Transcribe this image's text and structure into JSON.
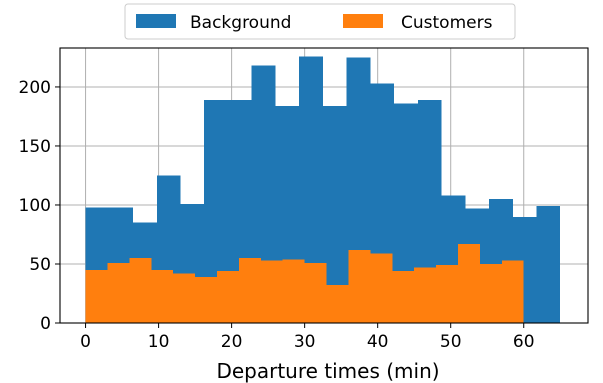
{
  "chart_data": {
    "type": "bar",
    "subtype": "overlapping-histogram",
    "xlabel": "Departure times (min)",
    "ylabel": "",
    "xlim": [
      -3.5,
      68.8
    ],
    "ylim": [
      0,
      233
    ],
    "xticks": [
      0,
      10,
      20,
      30,
      40,
      50,
      60
    ],
    "yticks": [
      0,
      50,
      100,
      150,
      200
    ],
    "grid": true,
    "legend_position": "top-center",
    "series": [
      {
        "name": "Background",
        "color": "#1f77b4",
        "bin_edges": [
          0,
          3.25,
          6.5,
          9.75,
          13,
          16.25,
          19.5,
          22.75,
          26,
          29.25,
          32.5,
          35.75,
          39,
          42.25,
          45.5,
          48.75,
          52,
          55.25,
          58.5,
          61.75,
          65
        ],
        "counts": [
          98,
          98,
          85,
          125,
          101,
          189,
          189,
          218,
          184,
          226,
          184,
          225,
          203,
          186,
          189,
          108,
          97,
          105,
          90,
          99
        ]
      },
      {
        "name": "Customers",
        "color": "#ff7f0e",
        "bin_edges": [
          0,
          3,
          6,
          9,
          12,
          15,
          18,
          21,
          24,
          27,
          30,
          33,
          36,
          39,
          42,
          45,
          48,
          51,
          54,
          57,
          60
        ],
        "counts": [
          45,
          51,
          55,
          45,
          42,
          39,
          44,
          55,
          53,
          54,
          51,
          32,
          62,
          59,
          44,
          47,
          49,
          67,
          50,
          53
        ]
      }
    ]
  }
}
